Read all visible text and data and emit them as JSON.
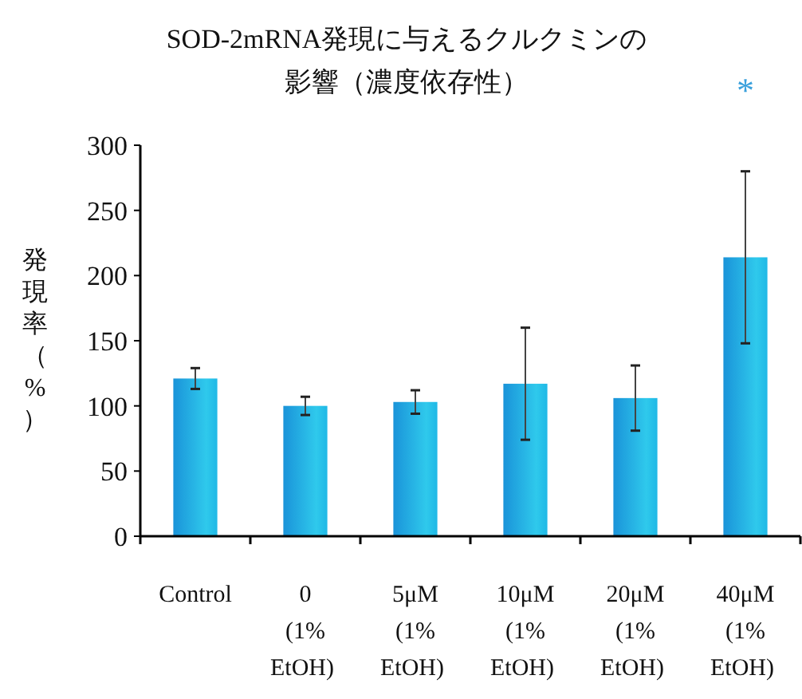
{
  "chart_data": {
    "type": "bar",
    "title": "SOD-2mRNA発現に与えるクルクミンの影響（濃度依存性）",
    "ylabel": "発現率（%）",
    "categories": [
      "Control",
      "0\n(1%\nEtOH)",
      "5μM\n(1%\nEtOH)",
      "10μM\n(1%\nEtOH)",
      "20μM\n(1%\nEtOH)",
      "40μM\n(1%\nEtOH)"
    ],
    "values": [
      121,
      100,
      103,
      117,
      106,
      214
    ],
    "errors": [
      8,
      7,
      9,
      43,
      25,
      66
    ],
    "color": "#1a93d9",
    "ylim": [
      0,
      300
    ],
    "yticks": [
      0,
      50,
      100,
      150,
      200,
      250,
      300
    ],
    "annotations": [
      "*"
    ]
  }
}
